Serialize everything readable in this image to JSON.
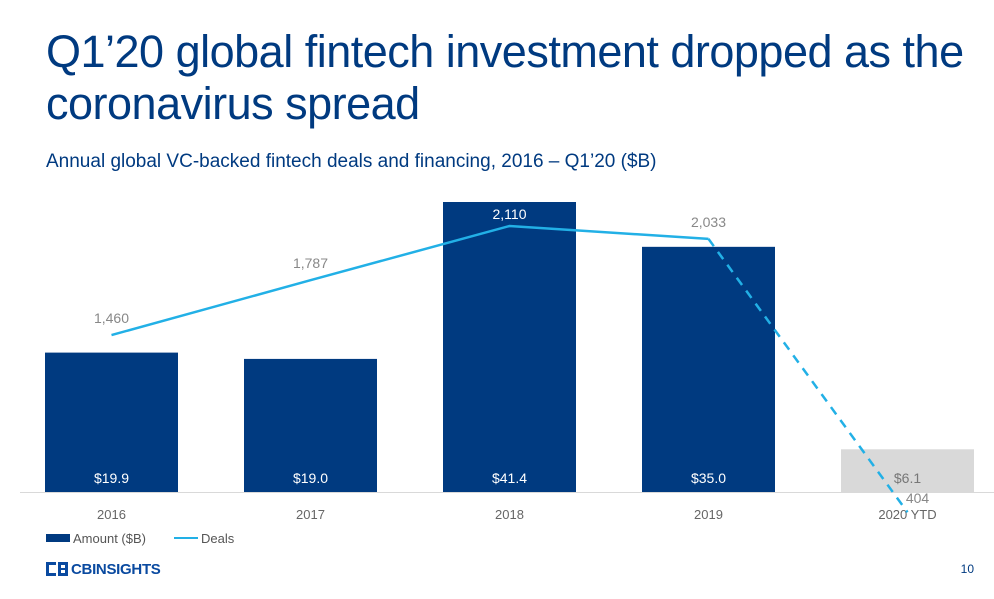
{
  "title": "Q1’20 global fintech investment dropped as the coronavirus spread",
  "subtitle": "Annual global VC-backed fintech deals and financing, 2016 – Q1’20 ($B)",
  "legend": {
    "amount": "Amount ($B)",
    "deals": "Deals"
  },
  "logo": {
    "text": "CBINSIGHTS",
    "icon": "cb-insights-logo-icon"
  },
  "page_number": "10",
  "colors": {
    "bar": "#003a80",
    "bar_ytd": "#d9d9d9",
    "line": "#22b0e6",
    "title": "#003a80"
  },
  "chart_data": {
    "type": "bar",
    "categories": [
      "2016",
      "2017",
      "2018",
      "2019",
      "2020 YTD"
    ],
    "series": [
      {
        "name": "Amount ($B)",
        "type": "bar",
        "values": [
          19.9,
          19.0,
          41.4,
          35.0,
          6.1
        ],
        "labels": [
          "$19.9",
          "$19.0",
          "$41.4",
          "$35.0",
          "$6.1"
        ]
      },
      {
        "name": "Deals",
        "type": "line",
        "values": [
          1460,
          1787,
          2110,
          2033,
          404
        ],
        "labels": [
          "1,460",
          "1,787",
          "2,110",
          "2,033",
          "404"
        ],
        "dashed_from_index": 3
      }
    ],
    "amount_range": [
      0,
      41.4
    ],
    "deals_range": [
      0,
      2110
    ],
    "legend_position": "bottom-left",
    "grid": false
  }
}
